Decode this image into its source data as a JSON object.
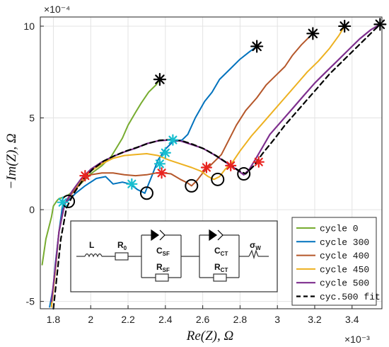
{
  "chart_data": {
    "type": "line",
    "title": "",
    "xlabel": "Re(Z), Ω",
    "ylabel": "−Im(Z), Ω",
    "x_multiplier": "×10⁻³",
    "y_multiplier": "×10⁻⁴",
    "xlim": [
      1.73,
      3.56
    ],
    "ylim": [
      -5.4,
      10.5
    ],
    "x_ticks": [
      "1.8",
      "2",
      "2.2",
      "2.4",
      "2.6",
      "2.8",
      "3",
      "3.2",
      "3.4"
    ],
    "x_tick_values": [
      1.8,
      2.0,
      2.2,
      2.4,
      2.6,
      2.8,
      3.0,
      3.2,
      3.4
    ],
    "y_ticks": [
      "-5",
      "0",
      "5",
      "10"
    ],
    "y_tick_values": [
      -5,
      0,
      5,
      10
    ],
    "grid": true,
    "legend_position": "bottom-right",
    "series": [
      {
        "name": "cycle 0",
        "color": "#77AC30",
        "width": 2,
        "dashed": false,
        "x": [
          1.74,
          1.76,
          1.79,
          1.8,
          1.82,
          1.83,
          1.86,
          1.88,
          1.91,
          1.95,
          2.0,
          2.06,
          2.11,
          2.14,
          2.17,
          2.2,
          2.24,
          2.27,
          2.31,
          2.35,
          2.37
        ],
        "y": [
          -3.0,
          -1.6,
          -0.4,
          0.2,
          0.5,
          0.6,
          0.7,
          0.8,
          1.05,
          1.45,
          1.95,
          2.4,
          2.9,
          3.4,
          3.9,
          4.6,
          5.3,
          5.8,
          6.4,
          6.8,
          7.1
        ]
      },
      {
        "name": "cycle 300",
        "color": "#0072BD",
        "width": 2,
        "dashed": false,
        "x": [
          1.78,
          1.8,
          1.81,
          1.83,
          1.85,
          1.88,
          1.92,
          1.97,
          2.03,
          2.08,
          2.12,
          2.17,
          2.21,
          2.25,
          2.29,
          2.33,
          2.36,
          2.4,
          2.44,
          2.49,
          2.52,
          2.56,
          2.61,
          2.65,
          2.69,
          2.75,
          2.8,
          2.85,
          2.89
        ],
        "y": [
          -5.3,
          -4.2,
          -3.0,
          -1.2,
          0.3,
          0.5,
          0.9,
          1.3,
          1.7,
          1.8,
          1.4,
          1.5,
          1.4,
          1.1,
          0.9,
          1.9,
          2.7,
          3.3,
          3.7,
          3.8,
          4.1,
          5.0,
          5.9,
          6.4,
          7.1,
          7.7,
          8.2,
          8.6,
          8.9
        ]
      },
      {
        "name": "cycle 400",
        "color": "#B5572A",
        "width": 2,
        "dashed": false,
        "x": [
          1.79,
          1.81,
          1.83,
          1.86,
          1.9,
          1.95,
          2.0,
          2.06,
          2.12,
          2.18,
          2.24,
          2.3,
          2.35,
          2.39,
          2.43,
          2.48,
          2.52,
          2.54,
          2.57,
          2.6,
          2.63,
          2.66,
          2.7,
          2.74,
          2.78,
          2.83,
          2.89,
          2.94,
          2.99,
          3.04,
          3.08,
          3.13,
          3.16,
          3.19
        ],
        "y": [
          -5.1,
          -3.2,
          -1.2,
          0.3,
          0.9,
          1.5,
          1.9,
          2.0,
          2.0,
          1.9,
          1.85,
          1.9,
          2.0,
          2.0,
          1.95,
          1.65,
          1.45,
          1.3,
          1.6,
          2.0,
          2.3,
          2.6,
          3.0,
          3.8,
          4.6,
          5.4,
          6.1,
          6.8,
          7.3,
          7.8,
          8.4,
          9.0,
          9.3,
          9.6
        ]
      },
      {
        "name": "cycle 450",
        "color": "#EDB120",
        "width": 2,
        "dashed": false,
        "x": [
          1.79,
          1.81,
          1.83,
          1.86,
          1.9,
          1.95,
          2.0,
          2.06,
          2.12,
          2.18,
          2.24,
          2.3,
          2.36,
          2.42,
          2.48,
          2.54,
          2.59,
          2.63,
          2.66,
          2.69,
          2.72,
          2.76,
          2.8,
          2.86,
          2.92,
          2.98,
          3.04,
          3.1,
          3.16,
          3.22,
          3.28,
          3.33,
          3.36
        ],
        "y": [
          -5.3,
          -3.4,
          -1.2,
          0.3,
          1.0,
          1.6,
          2.1,
          2.5,
          2.8,
          2.95,
          3.0,
          3.05,
          2.95,
          2.7,
          2.5,
          2.3,
          2.1,
          1.8,
          1.65,
          1.8,
          2.2,
          2.6,
          3.2,
          4.0,
          4.7,
          5.4,
          6.1,
          6.8,
          7.5,
          8.1,
          8.8,
          9.5,
          10.0
        ]
      },
      {
        "name": "cycle 500",
        "color": "#7E2F8E",
        "width": 2.2,
        "dashed": false,
        "x": [
          1.79,
          1.81,
          1.83,
          1.86,
          1.9,
          1.95,
          2.0,
          2.06,
          2.12,
          2.18,
          2.24,
          2.3,
          2.36,
          2.42,
          2.48,
          2.54,
          2.6,
          2.66,
          2.72,
          2.78,
          2.82,
          2.85,
          2.88,
          2.92,
          2.96,
          3.02,
          3.08,
          3.14,
          3.2,
          3.26,
          3.32,
          3.38,
          3.44,
          3.5,
          3.55
        ],
        "y": [
          -5.0,
          -3.2,
          -1.2,
          0.3,
          1.0,
          1.7,
          2.2,
          2.6,
          2.9,
          3.15,
          3.35,
          3.6,
          3.75,
          3.8,
          3.75,
          3.55,
          3.35,
          3.0,
          2.6,
          2.2,
          1.9,
          2.2,
          2.7,
          3.4,
          4.1,
          4.8,
          5.5,
          6.2,
          6.9,
          7.5,
          8.1,
          8.7,
          9.3,
          9.8,
          10.1
        ]
      },
      {
        "name": "cyc.500 fit",
        "color": "#000000",
        "width": 2.2,
        "dashed": true,
        "x": [
          1.8,
          1.82,
          1.84,
          1.87,
          1.91,
          1.96,
          2.01,
          2.07,
          2.13,
          2.19,
          2.25,
          2.31,
          2.37,
          2.43,
          2.49,
          2.55,
          2.61,
          2.67,
          2.73,
          2.79,
          2.83,
          2.87,
          2.92,
          2.98,
          3.04,
          3.1,
          3.16,
          3.22,
          3.28,
          3.34,
          3.4,
          3.46,
          3.52,
          3.55
        ],
        "y": [
          -5.4,
          -3.5,
          -1.6,
          0.1,
          0.9,
          1.65,
          2.2,
          2.65,
          2.95,
          3.2,
          3.4,
          3.62,
          3.78,
          3.82,
          3.75,
          3.55,
          3.3,
          2.95,
          2.55,
          2.15,
          1.95,
          2.35,
          3.05,
          3.8,
          4.6,
          5.3,
          6.0,
          6.7,
          7.4,
          8.0,
          8.6,
          9.2,
          9.8,
          10.1
        ]
      }
    ],
    "markers": {
      "cyan_stars": {
        "color": "#17BECF",
        "points": [
          [
            1.85,
            0.4
          ],
          [
            2.22,
            1.4
          ],
          [
            2.37,
            2.5
          ],
          [
            2.4,
            3.1
          ],
          [
            2.44,
            3.8
          ]
        ]
      },
      "red_stars": {
        "color": "#E8231F",
        "points": [
          [
            1.97,
            1.85
          ],
          [
            2.38,
            2.0
          ],
          [
            2.62,
            2.3
          ],
          [
            2.75,
            2.4
          ],
          [
            2.9,
            2.6
          ]
        ]
      },
      "black_stars": {
        "color": "#000000",
        "points": [
          [
            2.37,
            7.1
          ],
          [
            2.89,
            8.9
          ],
          [
            3.19,
            9.6
          ],
          [
            3.36,
            10.0
          ],
          [
            3.55,
            10.1
          ]
        ]
      },
      "open_circles": {
        "color": "#000000",
        "points": [
          [
            1.88,
            0.45
          ],
          [
            2.3,
            0.9
          ],
          [
            2.54,
            1.3
          ],
          [
            2.68,
            1.65
          ],
          [
            2.82,
            1.95
          ]
        ]
      }
    }
  },
  "inset": {
    "components": [
      {
        "label": "L",
        "sub": ""
      },
      {
        "label": "R",
        "sub": "0"
      },
      {
        "label": "C",
        "sub": "SF"
      },
      {
        "label": "R",
        "sub": "SF"
      },
      {
        "label": "C",
        "sub": "CT"
      },
      {
        "label": "R",
        "sub": "CT"
      },
      {
        "label": "σ",
        "sub": "W"
      }
    ]
  }
}
